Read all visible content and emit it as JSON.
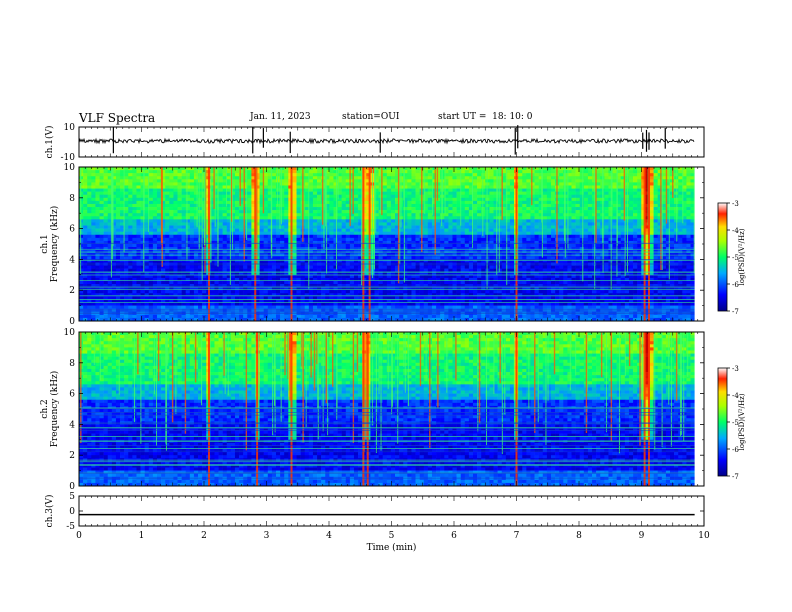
{
  "header": {
    "title": "VLF Spectra",
    "date": "Jan. 11, 2023",
    "station": "station=OUI",
    "start": "start UT =  18: 10: 0"
  },
  "chart_data": [
    {
      "type": "line",
      "name": "ch1-waveform",
      "ylabel": "ch.1(V)",
      "ylim": [
        -10,
        10
      ],
      "yticks": [
        10,
        -10
      ],
      "xlim": [
        0,
        10
      ],
      "baseline": 0,
      "spikes_min": [
        0.55,
        2.78,
        2.95,
        3.38,
        4.82,
        6.98,
        7.02,
        9.02,
        9.08,
        9.12,
        9.38
      ]
    },
    {
      "type": "heatmap",
      "name": "ch1-spectrogram",
      "ylabel": "ch.1\nFrequency (kHz)",
      "ylim": [
        0,
        10
      ],
      "yticks": [
        0,
        2,
        4,
        6,
        8,
        10
      ],
      "xlim": [
        0,
        9.85
      ],
      "colorbar": {
        "label": "log(PSD)(V²/Hz)",
        "range": [
          -7,
          -3
        ],
        "ticks": [
          -3,
          -4,
          -5,
          -6,
          -7
        ]
      },
      "strong_bursts_min": [
        2.08,
        2.82,
        3.4,
        4.55,
        4.65,
        7.0,
        9.05,
        9.12
      ]
    },
    {
      "type": "heatmap",
      "name": "ch2-spectrogram",
      "ylabel": "ch.2\nFrequency (kHz)",
      "ylim": [
        0,
        10
      ],
      "yticks": [
        0,
        2,
        4,
        6,
        8,
        10
      ],
      "xlim": [
        0,
        9.85
      ],
      "colorbar": {
        "label": "log(PSD)(V²/Hz)",
        "range": [
          -7,
          -3
        ],
        "ticks": [
          -3,
          -4,
          -5,
          -6,
          -7
        ]
      },
      "strong_bursts_min": [
        2.08,
        2.85,
        3.4,
        4.55,
        4.62,
        7.0,
        9.05,
        9.12
      ]
    },
    {
      "type": "line",
      "name": "ch3-waveform",
      "ylabel": "ch.3(V)",
      "ylim": [
        -5,
        5
      ],
      "yticks": [
        5,
        0,
        -5
      ],
      "xlim": [
        0,
        10
      ],
      "baseline": -1.2
    }
  ],
  "xaxis": {
    "label": "Time (min)",
    "ticks": [
      0,
      1,
      2,
      3,
      4,
      5,
      6,
      7,
      8,
      9,
      10
    ]
  }
}
